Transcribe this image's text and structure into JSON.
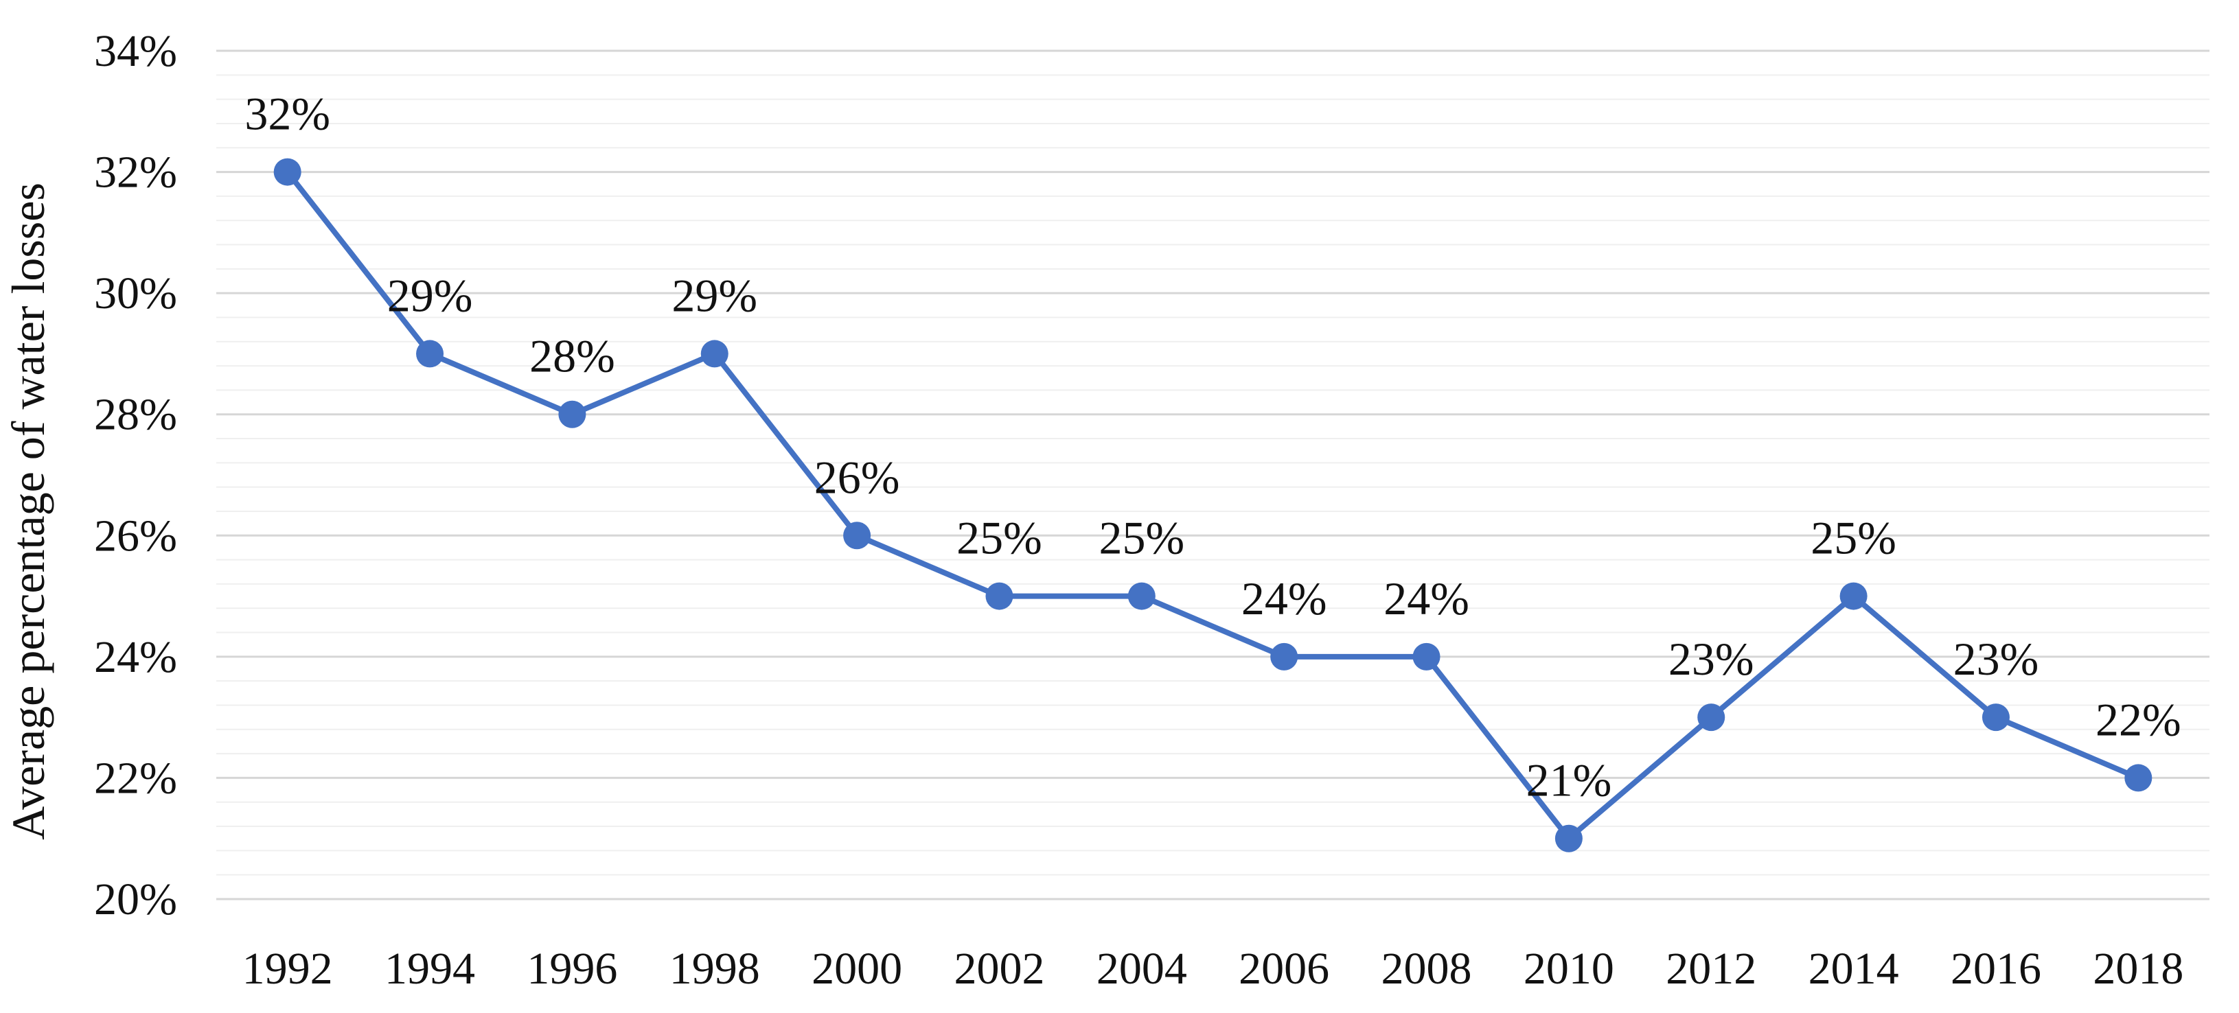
{
  "chart_data": {
    "type": "line",
    "title": "",
    "xlabel": "",
    "ylabel": "Average percentage of water losses",
    "categories": [
      "1992",
      "1994",
      "1996",
      "1998",
      "2000",
      "2002",
      "2004",
      "2006",
      "2008",
      "2010",
      "2012",
      "2014",
      "2016",
      "2018"
    ],
    "series": [
      {
        "name": "Average percentage of water losses",
        "values": [
          32,
          29,
          28,
          29,
          26,
          25,
          25,
          24,
          24,
          21,
          23,
          25,
          23,
          22
        ],
        "data_labels": [
          "32%",
          "29%",
          "28%",
          "29%",
          "26%",
          "25%",
          "25%",
          "24%",
          "24%",
          "21%",
          "23%",
          "25%",
          "23%",
          "22%"
        ]
      }
    ],
    "ylim": [
      20,
      34
    ],
    "y_major_unit": 2,
    "y_minor_unit": 0.4,
    "ytick_labels": [
      "20%",
      "22%",
      "24%",
      "26%",
      "28%",
      "30%",
      "32%",
      "34%"
    ],
    "grid": "horizontal major and minor gridlines, no plot border, no axis lines, no tick marks",
    "legend": "none",
    "marker": "filled circle",
    "data_label_position": "above points",
    "colors": {
      "line": "#4472C4",
      "marker": "#4472C4",
      "major_gridline": "#d6d6d6",
      "minor_gridline": "#efefef",
      "text": "#111111",
      "background": "#ffffff"
    }
  }
}
